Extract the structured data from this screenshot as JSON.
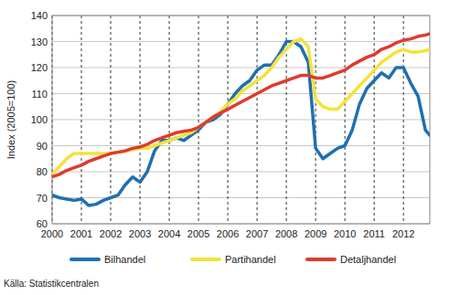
{
  "chart_data": {
    "type": "line",
    "y_label": "Index (2005=100)",
    "source": "Källa: Statistikcentralen",
    "x": [
      2000,
      2000.25,
      2000.5,
      2000.75,
      2001,
      2001.25,
      2001.5,
      2001.75,
      2002,
      2002.25,
      2002.5,
      2002.75,
      2003,
      2003.25,
      2003.5,
      2003.75,
      2004,
      2004.25,
      2004.5,
      2004.75,
      2005,
      2005.25,
      2005.5,
      2005.75,
      2006,
      2006.25,
      2006.5,
      2006.75,
      2007,
      2007.25,
      2007.5,
      2007.75,
      2008,
      2008.25,
      2008.5,
      2008.75,
      2009,
      2009.25,
      2009.5,
      2009.75,
      2010,
      2010.25,
      2010.5,
      2010.75,
      2011,
      2011.25,
      2011.5,
      2011.75,
      2012,
      2012.25,
      2012.5,
      2012.75,
      2012.9
    ],
    "series": [
      {
        "name": "Bilhandel",
        "color": "#1f6fb2",
        "values": [
          71,
          70,
          69.5,
          69,
          69.5,
          67,
          67.5,
          69,
          70,
          71,
          75,
          78,
          76,
          80,
          88,
          92,
          92,
          93,
          92,
          94,
          96,
          99,
          100,
          102,
          106,
          110,
          113,
          115,
          119,
          121,
          121,
          125,
          130,
          130,
          128,
          122,
          89,
          85,
          87,
          89,
          90,
          96,
          106,
          112,
          115,
          118,
          116,
          120,
          120,
          114,
          109,
          96,
          94
        ]
      },
      {
        "name": "Partihandel",
        "color": "#f5e23a",
        "values": [
          79,
          82,
          85,
          87,
          87,
          87,
          87,
          87,
          87,
          87.5,
          88,
          88.5,
          89,
          89,
          90,
          91,
          92,
          93,
          94,
          95,
          97,
          99,
          101,
          103,
          106,
          108,
          111,
          113,
          115,
          117,
          120,
          124,
          127,
          130,
          131,
          128,
          108,
          105,
          104,
          104,
          107,
          110,
          113,
          116,
          119,
          122,
          124,
          126,
          127,
          126,
          126,
          126.5,
          127
        ]
      },
      {
        "name": "Detaljhandel",
        "color": "#e03a2f",
        "values": [
          78,
          79,
          80.5,
          81.5,
          82.5,
          84,
          85,
          86,
          87,
          87.5,
          88,
          89,
          89.5,
          90.5,
          92,
          93,
          94,
          95,
          95.5,
          96,
          97,
          99,
          101,
          102.5,
          104,
          105.5,
          107,
          108.5,
          110,
          111.5,
          113,
          114,
          115,
          116,
          117,
          117,
          116,
          116,
          117,
          118,
          119,
          121,
          122.5,
          124,
          125,
          127,
          128,
          129.5,
          130.5,
          131,
          132,
          132.5,
          133
        ]
      }
    ],
    "xlim": [
      2000,
      2012.9
    ],
    "xticks": [
      2000,
      2001,
      2002,
      2003,
      2004,
      2005,
      2006,
      2007,
      2008,
      2009,
      2010,
      2011,
      2012
    ],
    "ylim": [
      60,
      140
    ],
    "yticks": [
      60,
      70,
      80,
      90,
      100,
      110,
      120,
      130,
      140
    ],
    "grid": true,
    "legend": "bottom"
  }
}
